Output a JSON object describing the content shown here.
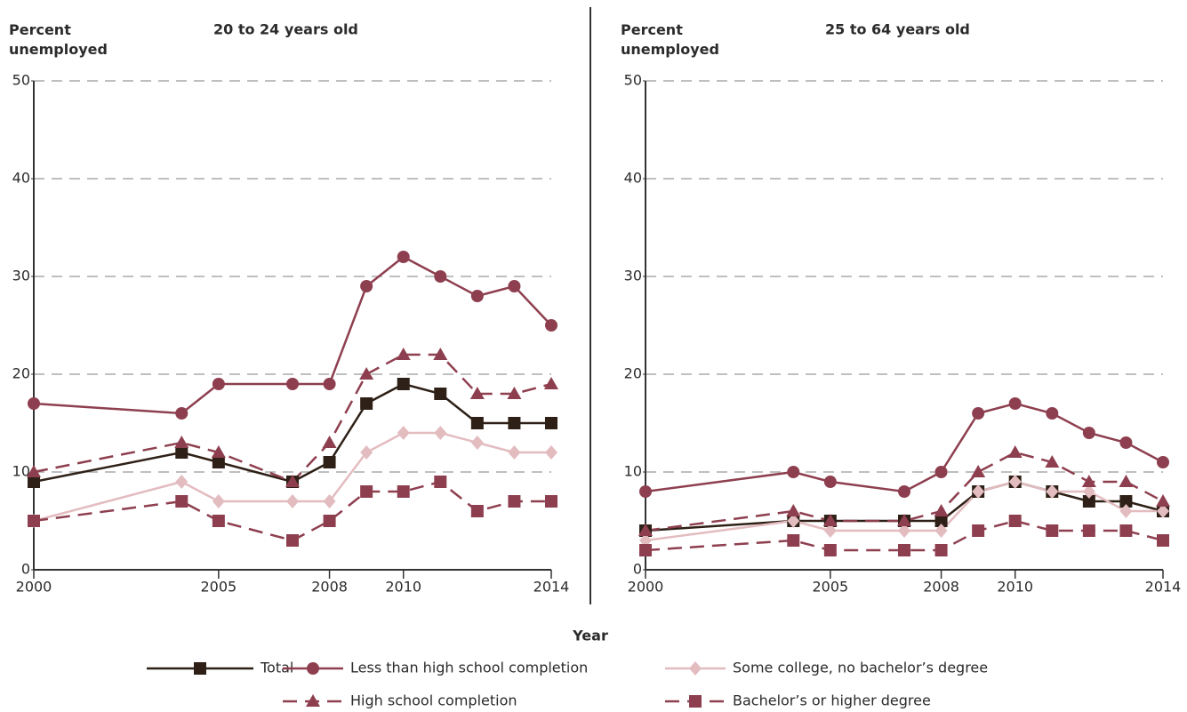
{
  "chart_data": [
    {
      "type": "line",
      "title": "20 to 24 years old",
      "y_label": "Percent unemployed",
      "x_label": "Year",
      "x": [
        2000,
        2004,
        2005,
        2007,
        2008,
        2009,
        2010,
        2011,
        2012,
        2013,
        2014
      ],
      "xlim": [
        2000,
        2014
      ],
      "xticks": [
        2000,
        2005,
        2008,
        2010,
        2014
      ],
      "ylim": [
        0,
        50
      ],
      "yticks": [
        0,
        10,
        20,
        30,
        40,
        50
      ],
      "grid": true,
      "series": [
        {
          "name": "Total",
          "color": "#2e2016",
          "marker": "square",
          "dashed": false,
          "values": [
            9,
            12,
            11,
            9,
            11,
            17,
            19,
            18,
            15,
            15,
            15
          ]
        },
        {
          "name": "Less than high school completion",
          "color": "#8e3f4f",
          "marker": "circle",
          "dashed": false,
          "values": [
            17,
            16,
            19,
            19,
            19,
            29,
            32,
            30,
            28,
            29,
            25
          ]
        },
        {
          "name": "Some college, no bachelor’s degree",
          "color": "#e3bcc0",
          "marker": "diamond",
          "dashed": false,
          "values": [
            5,
            9,
            7,
            7,
            7,
            12,
            14,
            14,
            13,
            12,
            12
          ]
        },
        {
          "name": "High school completion",
          "color": "#8e3f4f",
          "marker": "triangle",
          "dashed": true,
          "values": [
            10,
            13,
            12,
            9,
            13,
            20,
            22,
            22,
            18,
            18,
            19
          ]
        },
        {
          "name": "Bachelor’s or higher degree",
          "color": "#8e3f4f",
          "marker": "square",
          "dashed": true,
          "values": [
            5,
            7,
            5,
            3,
            5,
            8,
            8,
            9,
            6,
            7,
            7
          ]
        }
      ]
    },
    {
      "type": "line",
      "title": "25 to 64 years old",
      "y_label": "Percent unemployed",
      "x": [
        2000,
        2004,
        2005,
        2007,
        2008,
        2009,
        2010,
        2011,
        2012,
        2013,
        2014
      ],
      "xlim": [
        2000,
        2014
      ],
      "xticks": [
        2000,
        2005,
        2008,
        2010,
        2014
      ],
      "ylim": [
        0,
        50
      ],
      "yticks": [
        0,
        10,
        20,
        30,
        40,
        50
      ],
      "grid": true,
      "series": [
        {
          "name": "Total",
          "color": "#2e2016",
          "marker": "square",
          "dashed": false,
          "values": [
            4,
            5,
            5,
            5,
            5,
            8,
            9,
            8,
            7,
            7,
            6
          ]
        },
        {
          "name": "Less than high school completion",
          "color": "#8e3f4f",
          "marker": "circle",
          "dashed": false,
          "values": [
            8,
            10,
            9,
            8,
            10,
            16,
            17,
            16,
            14,
            13,
            11
          ]
        },
        {
          "name": "Some college, no bachelor’s degree",
          "color": "#e3bcc0",
          "marker": "diamond",
          "dashed": false,
          "values": [
            3,
            5,
            4,
            4,
            4,
            8,
            9,
            8,
            8,
            6,
            6
          ]
        },
        {
          "name": "High school completion",
          "color": "#8e3f4f",
          "marker": "triangle",
          "dashed": true,
          "values": [
            4,
            6,
            5,
            5,
            6,
            10,
            12,
            11,
            9,
            9,
            7
          ]
        },
        {
          "name": "Bachelor’s or higher degree",
          "color": "#8e3f4f",
          "marker": "square",
          "dashed": true,
          "values": [
            2,
            3,
            2,
            2,
            2,
            4,
            5,
            4,
            4,
            4,
            3
          ]
        }
      ]
    }
  ]
}
